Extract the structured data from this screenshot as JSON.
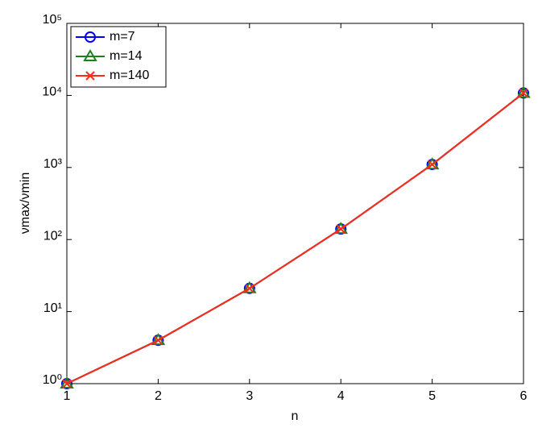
{
  "chart_data": {
    "type": "line",
    "x_label": "n",
    "y_label": "νmax/νmin",
    "x": [
      1,
      2,
      3,
      4,
      5,
      6
    ],
    "series": [
      {
        "name": "m=7",
        "color": "#0000ff",
        "marker": "circle",
        "values": [
          1,
          4,
          21,
          140,
          1100,
          10800
        ]
      },
      {
        "name": "m=14",
        "color": "#1f7f1f",
        "marker": "triangle",
        "values": [
          1,
          4,
          21,
          140,
          1100,
          10800
        ]
      },
      {
        "name": "m=140",
        "color": "#ff2a1a",
        "marker": "x",
        "values": [
          1,
          4,
          21,
          140,
          1100,
          10800
        ]
      }
    ],
    "xlim": [
      1,
      6
    ],
    "xticks": [
      1,
      2,
      3,
      4,
      5,
      6
    ],
    "ylim": [
      1,
      100000
    ],
    "ylog": true,
    "yticks": [
      {
        "value": 1,
        "label": "10⁰"
      },
      {
        "value": 10,
        "label": "10¹"
      },
      {
        "value": 100,
        "label": "10²"
      },
      {
        "value": 1000,
        "label": "10³"
      },
      {
        "value": 10000,
        "label": "10⁴"
      },
      {
        "value": 100000,
        "label": "10⁵"
      }
    ],
    "legend": "upper-left"
  }
}
